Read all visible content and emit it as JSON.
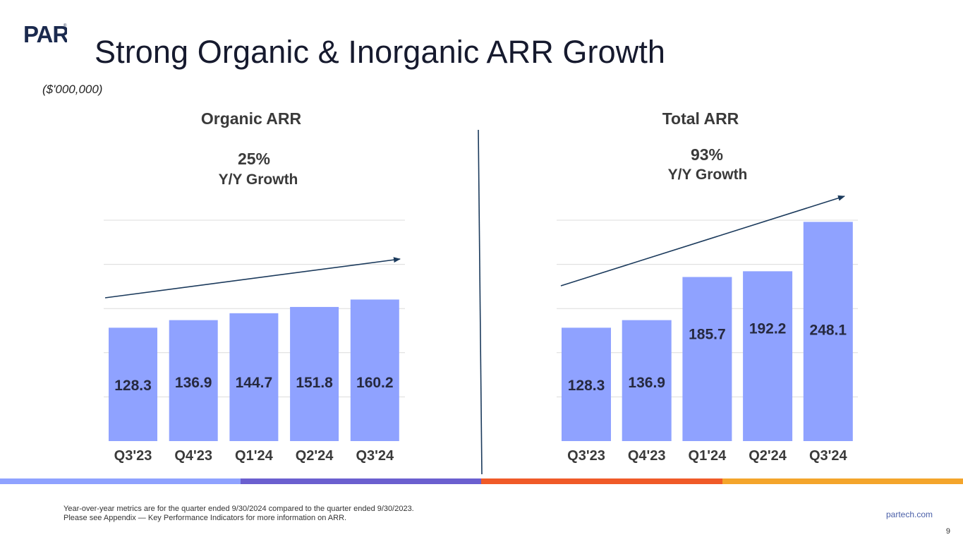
{
  "logo": {
    "text": "PAR",
    "mark": "®"
  },
  "title": "Strong Organic & Inorganic ARR Growth",
  "units": "($'000,000)",
  "colors": {
    "bar": "#8fa2ff",
    "arrow": "#1b3a5c",
    "grid": "#dcdcdc",
    "stripe": [
      "#8fa2ff",
      "#6b5fcf",
      "#f05a28",
      "#f4a52b"
    ]
  },
  "chart_data": [
    {
      "type": "bar",
      "title": "Organic ARR",
      "growth": {
        "pct": "25%",
        "label": "Y/Y Growth"
      },
      "categories": [
        "Q3'23",
        "Q4'23",
        "Q1'24",
        "Q2'24",
        "Q3'24"
      ],
      "values": [
        128.3,
        136.9,
        144.7,
        151.8,
        160.2
      ],
      "value_labels": [
        "128.3",
        "136.9",
        "144.7",
        "151.8",
        "160.2"
      ],
      "ylim": [
        0,
        250
      ],
      "grid": true
    },
    {
      "type": "bar",
      "title": "Total ARR",
      "growth": {
        "pct": "93%",
        "label": "Y/Y Growth"
      },
      "categories": [
        "Q3'23",
        "Q4'23",
        "Q1'24",
        "Q2'24",
        "Q3'24"
      ],
      "values": [
        128.3,
        136.9,
        185.7,
        192.2,
        248.1
      ],
      "value_labels": [
        "128.3",
        "136.9",
        "185.7",
        "192.2",
        "248.1"
      ],
      "ylim": [
        0,
        250
      ],
      "grid": true
    }
  ],
  "footer": {
    "note1": "Year-over-year metrics are for the quarter ended 9/30/2024 compared to the quarter ended 9/30/2023.",
    "note2": "Please see Appendix — Key Performance Indicators for more information on ARR.",
    "site": "partech.com",
    "page": "9"
  }
}
